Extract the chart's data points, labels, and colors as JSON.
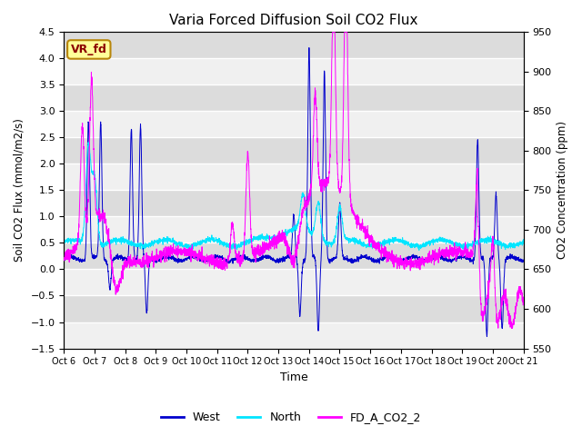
{
  "title": "Varia Forced Diffusion Soil CO2 Flux",
  "xlabel": "Time",
  "ylabel_left": "Soil CO2 Flux (mmol/m2/s)",
  "ylabel_right": "CO2 Concentration (ppm)",
  "ylim_left": [
    -1.5,
    4.5
  ],
  "ylim_right": [
    550,
    950
  ],
  "yticks_left": [
    -1.5,
    -1.0,
    -0.5,
    0.0,
    0.5,
    1.0,
    1.5,
    2.0,
    2.5,
    3.0,
    3.5,
    4.0,
    4.5
  ],
  "yticks_right": [
    550,
    600,
    650,
    700,
    750,
    800,
    850,
    900,
    950
  ],
  "xtick_labels": [
    "Oct 6",
    "Oct 7",
    "Oct 8",
    "Oct 9",
    "Oct 10",
    "Oct 11",
    "Oct 12",
    "Oct 13",
    "Oct 14",
    "Oct 15",
    "Oct 16",
    "Oct 17",
    "Oct 18",
    "Oct 19",
    "Oct 20",
    "Oct 21"
  ],
  "color_west": "#0000CD",
  "color_north": "#00E5FF",
  "color_co2": "#FF00FF",
  "background_light": "#F0F0F0",
  "background_dark": "#DCDCDC",
  "grid_color": "#FFFFFF",
  "label_box_text": "VR_fd",
  "label_box_facecolor": "#FFFF99",
  "label_box_edgecolor": "#B8860B",
  "label_box_textcolor": "#8B0000",
  "legend_labels": [
    "West",
    "North",
    "FD_A_CO2_2"
  ],
  "n_points": 3000
}
